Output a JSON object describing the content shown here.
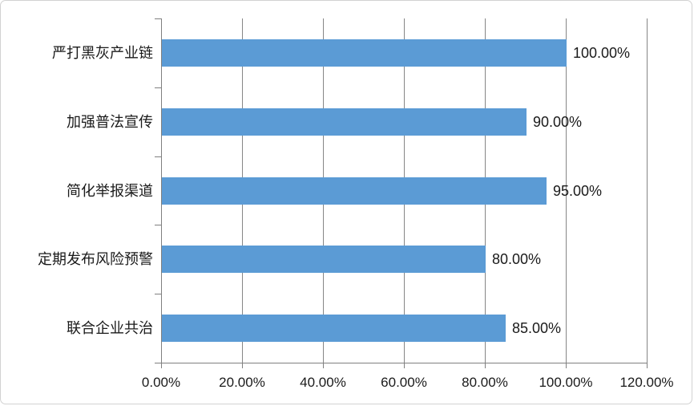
{
  "chart_data": {
    "type": "bar",
    "orientation": "horizontal",
    "title": "",
    "categories": [
      "严打黑灰产业链",
      "加强普法宣传",
      "简化举报渠道",
      "定期发布风险预警",
      "联合企业共治"
    ],
    "values": [
      100,
      90,
      95,
      80,
      85
    ],
    "value_labels": [
      "100.00%",
      "90.00%",
      "95.00%",
      "80.00%",
      "85.00%"
    ],
    "x_tick_values": [
      0,
      20,
      40,
      60,
      80,
      100,
      120
    ],
    "x_tick_labels": [
      "0.00%",
      "20.00%",
      "40.00%",
      "60.00%",
      "80.00%",
      "100.00%",
      "120.00%"
    ],
    "xlim": [
      0,
      120
    ],
    "grid": "vertical-on",
    "legend": "none",
    "bar_color": "#5B9BD5",
    "gridline_color": "#868686",
    "axis_color": "#808080",
    "label_color": "#1a1a1a"
  }
}
